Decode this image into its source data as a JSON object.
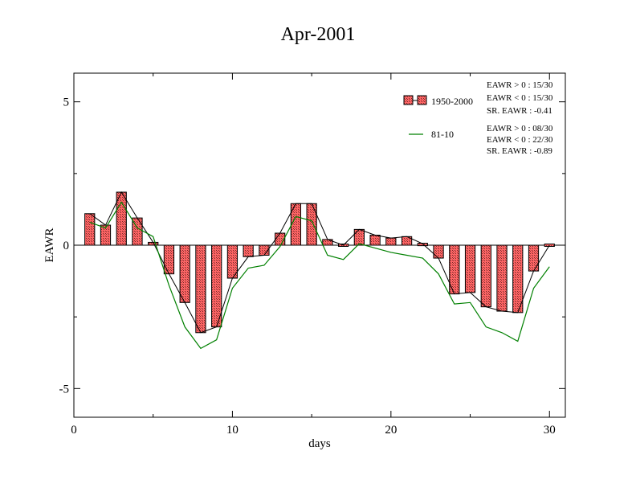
{
  "chart_data": {
    "type": "bar",
    "title": "Apr-2001",
    "xlabel": "days",
    "ylabel": "EAWR",
    "xlim": [
      0,
      31
    ],
    "ylim": [
      -6,
      6
    ],
    "x_ticks": [
      0,
      10,
      20,
      30
    ],
    "y_ticks": [
      -5,
      0,
      5
    ],
    "grid": false,
    "legend_position": "top-right",
    "x": [
      1,
      2,
      3,
      4,
      5,
      6,
      7,
      8,
      9,
      10,
      11,
      12,
      13,
      14,
      15,
      16,
      17,
      18,
      19,
      20,
      21,
      22,
      23,
      24,
      25,
      26,
      27,
      28,
      29,
      30
    ],
    "series": [
      {
        "name": "1950-2000",
        "kind": "bar",
        "color": "#ff6666",
        "values": [
          1.1,
          0.7,
          1.85,
          0.95,
          0.1,
          -1.0,
          -2.0,
          -3.05,
          -2.85,
          -1.15,
          -0.4,
          -0.35,
          0.42,
          1.45,
          1.45,
          0.2,
          0.0,
          0.55,
          0.35,
          0.25,
          0.3,
          0.05,
          -0.45,
          -1.7,
          -1.65,
          -2.15,
          -2.3,
          -2.35,
          -0.9,
          0.0
        ]
      },
      {
        "name": "81-10",
        "kind": "line",
        "color": "#008000",
        "values": [
          0.8,
          0.6,
          1.5,
          0.6,
          0.3,
          -1.4,
          -2.85,
          -3.6,
          -3.3,
          -1.5,
          -0.8,
          -0.7,
          -0.05,
          1.0,
          0.85,
          -0.35,
          -0.5,
          0.05,
          -0.1,
          -0.25,
          -0.35,
          -0.45,
          -1.0,
          -2.05,
          -2.0,
          -2.85,
          -3.05,
          -3.35,
          -1.5,
          -0.75
        ]
      }
    ],
    "bar_outline_line": {
      "color": "#000000",
      "values": [
        1.1,
        0.7,
        1.85,
        0.95,
        0.1,
        -1.0,
        -2.0,
        -3.05,
        -2.85,
        -1.15,
        -0.4,
        -0.35,
        0.42,
        1.45,
        1.45,
        0.2,
        0.0,
        0.55,
        0.35,
        0.25,
        0.3,
        0.05,
        -0.45,
        -1.7,
        -1.65,
        -2.15,
        -2.3,
        -2.35,
        -0.9,
        0.0
      ]
    },
    "stats": [
      "EAWR > 0 : 15/30",
      "EAWR < 0 : 15/30",
      "SR. EAWR : -0.41",
      "EAWR > 0 : 08/30",
      "EAWR < 0 : 22/30",
      "SR. EAWR : -0.89"
    ]
  }
}
